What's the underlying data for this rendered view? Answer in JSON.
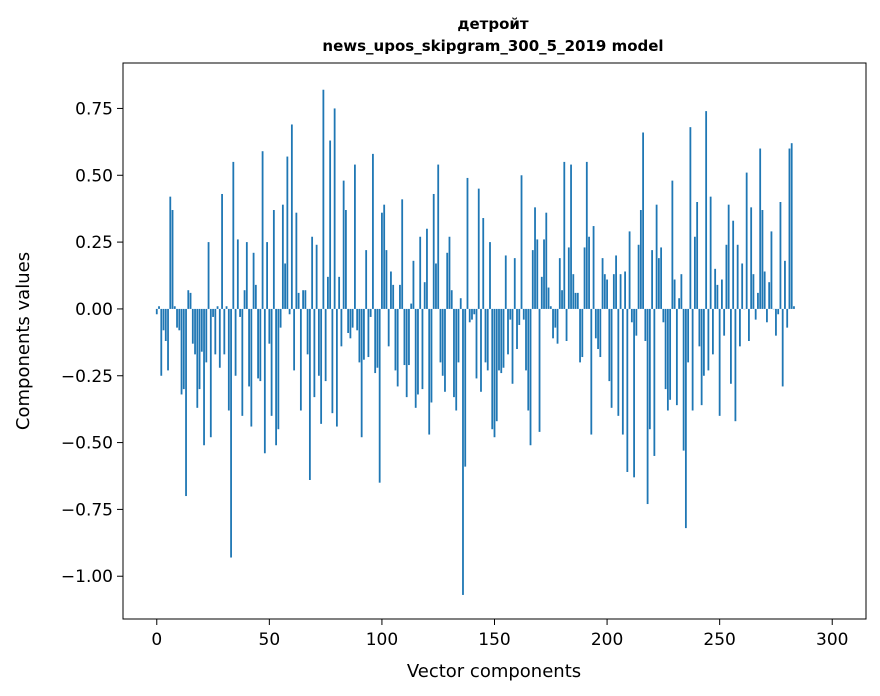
{
  "chart_data": {
    "type": "bar",
    "title": "детройт",
    "subtitle": "news_upos_skipgram_300_5_2019 model",
    "xlabel": "Vector components",
    "ylabel": "Components values",
    "xlim": [
      -15,
      315
    ],
    "ylim": [
      -1.16,
      0.92
    ],
    "xticks": [
      0,
      50,
      100,
      150,
      200,
      250,
      300
    ],
    "xtick_labels": [
      "0",
      "50",
      "100",
      "150",
      "200",
      "250",
      "300"
    ],
    "yticks": [
      -1.0,
      -0.75,
      -0.5,
      -0.25,
      0.0,
      0.25,
      0.5,
      0.75
    ],
    "ytick_labels": [
      "−1.00",
      "−0.75",
      "−0.50",
      "−0.25",
      "0.00",
      "0.25",
      "0.50",
      "0.75"
    ],
    "grid": false,
    "color": "#1f77b4",
    "x_start": 0,
    "values": [
      -0.02,
      0.01,
      -0.25,
      -0.08,
      -0.12,
      -0.23,
      0.42,
      0.37,
      0.01,
      -0.07,
      -0.08,
      -0.32,
      -0.3,
      -0.7,
      0.07,
      0.06,
      -0.13,
      -0.17,
      -0.37,
      -0.3,
      -0.16,
      -0.51,
      -0.2,
      0.25,
      -0.48,
      -0.03,
      -0.17,
      0.01,
      -0.22,
      0.43,
      -0.17,
      0.01,
      -0.38,
      -0.93,
      0.55,
      -0.25,
      0.26,
      -0.03,
      -0.4,
      0.07,
      0.25,
      -0.29,
      -0.44,
      0.21,
      0.09,
      -0.26,
      -0.27,
      0.59,
      -0.54,
      0.25,
      -0.13,
      -0.4,
      0.37,
      -0.51,
      -0.45,
      -0.07,
      0.39,
      0.17,
      0.57,
      -0.02,
      0.69,
      -0.23,
      0.36,
      0.06,
      -0.38,
      0.07,
      0.07,
      -0.17,
      -0.64,
      0.27,
      -0.33,
      0.24,
      -0.25,
      -0.43,
      0.82,
      -0.27,
      0.12,
      0.63,
      -0.39,
      0.75,
      -0.44,
      0.12,
      -0.14,
      0.48,
      0.37,
      -0.09,
      -0.11,
      -0.07,
      0.54,
      -0.08,
      -0.2,
      -0.48,
      -0.19,
      0.22,
      -0.18,
      -0.03,
      0.58,
      -0.24,
      -0.22,
      -0.65,
      0.36,
      0.39,
      0.22,
      -0.14,
      0.14,
      0.09,
      -0.23,
      -0.29,
      0.09,
      0.41,
      -0.21,
      -0.33,
      -0.21,
      0.02,
      0.18,
      -0.37,
      -0.32,
      0.27,
      -0.3,
      0.1,
      0.3,
      -0.47,
      -0.35,
      0.43,
      0.17,
      0.54,
      -0.2,
      -0.25,
      -0.31,
      0.21,
      0.27,
      0.07,
      -0.33,
      -0.38,
      -0.2,
      0.04,
      -1.07,
      -0.59,
      0.49,
      -0.05,
      -0.04,
      -0.02,
      -0.26,
      0.45,
      -0.31,
      0.34,
      -0.2,
      -0.23,
      0.25,
      -0.45,
      -0.48,
      -0.42,
      -0.23,
      -0.24,
      -0.22,
      0.2,
      -0.17,
      -0.04,
      -0.28,
      0.19,
      -0.15,
      -0.06,
      0.5,
      -0.04,
      -0.23,
      -0.38,
      -0.51,
      0.22,
      0.38,
      0.26,
      -0.46,
      0.12,
      0.26,
      0.36,
      0.08,
      0.01,
      -0.11,
      -0.07,
      -0.13,
      0.19,
      0.07,
      0.55,
      -0.12,
      0.23,
      0.54,
      0.13,
      0.06,
      0.06,
      -0.2,
      -0.18,
      0.23,
      0.55,
      0.27,
      -0.47,
      0.31,
      -0.11,
      -0.15,
      -0.18,
      0.19,
      0.13,
      0.11,
      -0.27,
      -0.37,
      0.13,
      0.2,
      -0.4,
      0.13,
      -0.47,
      0.14,
      -0.61,
      0.29,
      -0.05,
      -0.63,
      -0.1,
      0.24,
      0.37,
      0.66,
      -0.12,
      -0.73,
      -0.45,
      0.22,
      -0.55,
      0.39,
      0.19,
      0.23,
      -0.05,
      -0.3,
      -0.38,
      -0.34,
      0.48,
      0.11,
      -0.36,
      0.04,
      0.13,
      -0.53,
      -0.82,
      -0.2,
      0.68,
      -0.38,
      0.27,
      0.4,
      -0.14,
      -0.36,
      -0.25,
      0.74,
      -0.23,
      0.42,
      -0.17,
      0.15,
      0.09,
      -0.4,
      0.11,
      -0.1,
      0.24,
      0.39,
      -0.28,
      0.33,
      -0.42,
      0.24,
      -0.14,
      0.17,
      0.0,
      0.51,
      -0.12,
      0.38,
      0.13,
      -0.04,
      0.06,
      0.6,
      0.37,
      0.14,
      -0.05,
      0.1,
      0.29,
      0.0,
      -0.1,
      -0.02,
      0.4,
      -0.29,
      0.18,
      -0.07,
      0.6,
      0.62,
      0.01
    ]
  }
}
